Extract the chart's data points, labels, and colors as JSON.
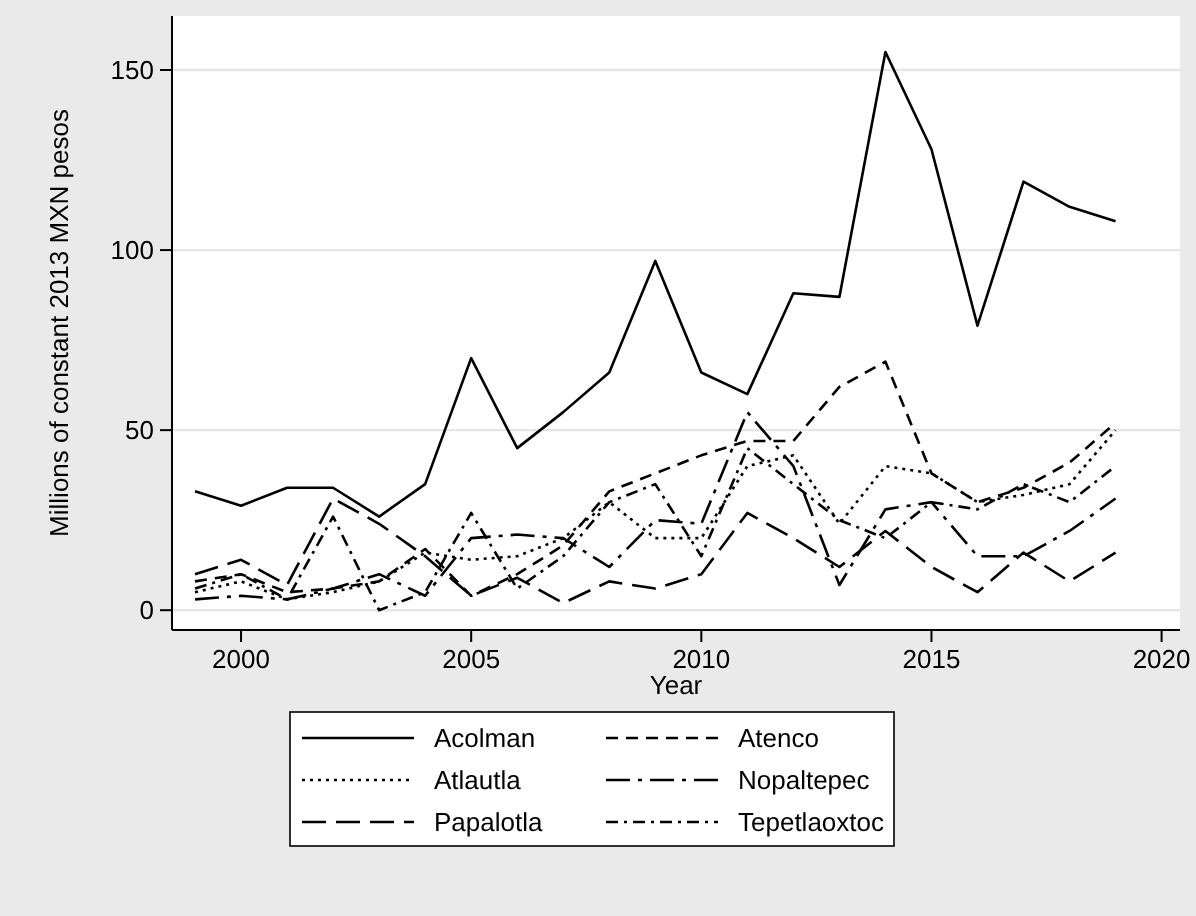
{
  "chart_data": {
    "type": "line",
    "xlabel": "Year",
    "ylabel": "Millions of constant 2013 MXN pesos",
    "x": [
      1999,
      2000,
      2001,
      2002,
      2003,
      2004,
      2005,
      2006,
      2007,
      2008,
      2009,
      2010,
      2011,
      2012,
      2013,
      2014,
      2015,
      2016,
      2017,
      2018,
      2019
    ],
    "series": [
      {
        "name": "Acolman",
        "color": "#000000",
        "line_style": "solid",
        "values": [
          33,
          29,
          34,
          34,
          26,
          35,
          70,
          45,
          55,
          66,
          97,
          66,
          60,
          88,
          87,
          155,
          128,
          79,
          119,
          112,
          108
        ]
      },
      {
        "name": "Atenco",
        "color": "#000000",
        "line_style": "dashed",
        "values": [
          8,
          10,
          5,
          6,
          8,
          17,
          4,
          10,
          18,
          33,
          38,
          43,
          47,
          47,
          62,
          69,
          38,
          30,
          34,
          41,
          52
        ]
      },
      {
        "name": "Atlautla",
        "color": "#000000",
        "line_style": "dotted",
        "values": [
          5,
          8,
          3,
          5,
          8,
          16,
          14,
          15,
          20,
          30,
          20,
          20,
          40,
          43,
          24,
          40,
          38,
          30,
          32,
          35,
          50
        ]
      },
      {
        "name": "Nopaltepec",
        "color": "#000000",
        "line_style": "longdashdot",
        "values": [
          3,
          4,
          3,
          6,
          10,
          4,
          20,
          21,
          20,
          12,
          25,
          24,
          55,
          40,
          7,
          28,
          30,
          15,
          15,
          22,
          31
        ]
      },
      {
        "name": "Papalotla",
        "color": "#000000",
        "line_style": "longdash",
        "values": [
          10,
          14,
          7,
          31,
          24,
          15,
          4,
          9,
          2,
          8,
          6,
          10,
          27,
          20,
          12,
          22,
          12,
          5,
          16,
          8,
          16
        ]
      },
      {
        "name": "Tepetlaoxtoc",
        "color": "#000000",
        "line_style": "dashdot",
        "values": [
          6,
          10,
          3,
          26,
          0,
          5,
          27,
          6,
          15,
          30,
          35,
          15,
          45,
          35,
          25,
          20,
          30,
          28,
          35,
          30,
          40
        ]
      }
    ],
    "xlim": [
      1998.5,
      2020.4
    ],
    "ylim": [
      -5.5,
      165
    ],
    "xticks": [
      2000,
      2005,
      2010,
      2015,
      2020
    ],
    "yticks": [
      0,
      50,
      100,
      150
    ],
    "grid": "y",
    "legend": "bottom",
    "marker": "none"
  }
}
